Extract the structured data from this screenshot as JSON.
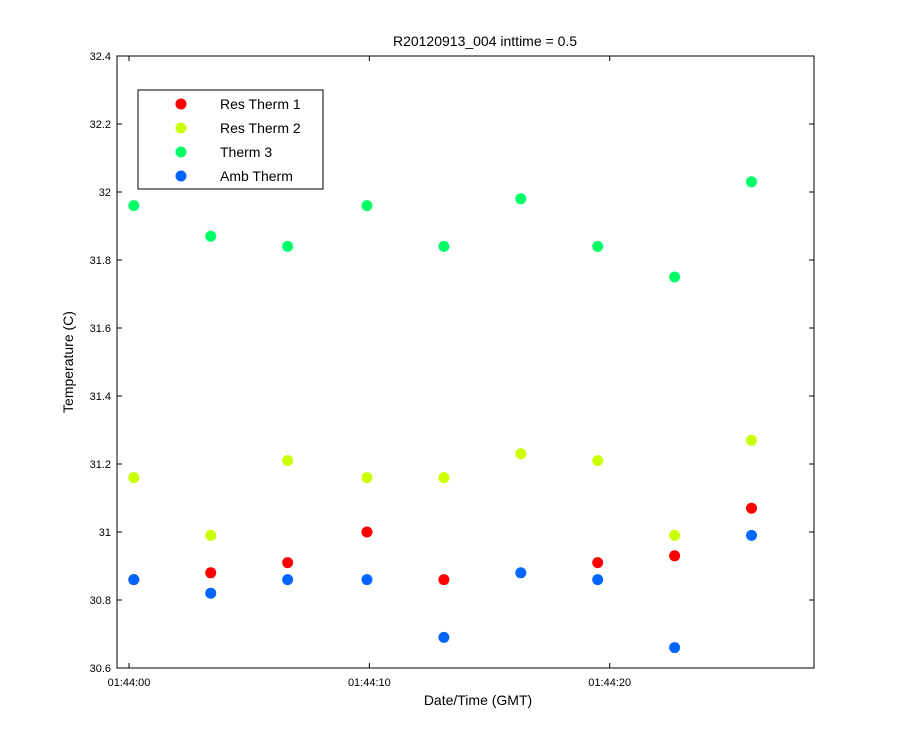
{
  "chart_data": {
    "type": "scatter",
    "title": "R20120913_004 inttime = 0.5",
    "xlabel": "Date/Time (GMT)",
    "ylabel": "Temperature (C)",
    "xlim": [
      "01:43:59.5",
      "01:44:28.5"
    ],
    "ylim": [
      30.6,
      32.4
    ],
    "x_ticks": [
      "01:44:00",
      "01:44:10",
      "01:44:20"
    ],
    "y_ticks": [
      "30.6",
      "30.8",
      "31",
      "31.2",
      "31.4",
      "31.6",
      "31.8",
      "32",
      "32.2",
      "32.4"
    ],
    "grid": false,
    "legend_position": "top-left",
    "x": [
      "01:44:00.2",
      "01:44:03.4",
      "01:44:06.6",
      "01:44:09.9",
      "01:44:13.1",
      "01:44:16.3",
      "01:44:19.5",
      "01:44:22.7",
      "01:44:25.9"
    ],
    "series": [
      {
        "name": "Res Therm 1",
        "color": "#ff0000",
        "values": [
          30.86,
          30.88,
          30.91,
          31.0,
          30.86,
          null,
          30.91,
          30.93,
          31.07
        ]
      },
      {
        "name": "Res Therm 2",
        "color": "#ccff00",
        "values": [
          31.16,
          30.99,
          31.21,
          31.16,
          31.16,
          31.23,
          31.21,
          30.99,
          31.27
        ]
      },
      {
        "name": "Therm 3",
        "color": "#00ff66",
        "values": [
          31.96,
          31.87,
          31.84,
          31.96,
          31.84,
          31.98,
          31.84,
          31.75,
          32.03
        ]
      },
      {
        "name": "Amb Therm",
        "color": "#0066ff",
        "values": [
          30.86,
          30.82,
          30.86,
          30.86,
          30.69,
          30.88,
          30.86,
          30.66,
          30.99
        ]
      }
    ]
  }
}
